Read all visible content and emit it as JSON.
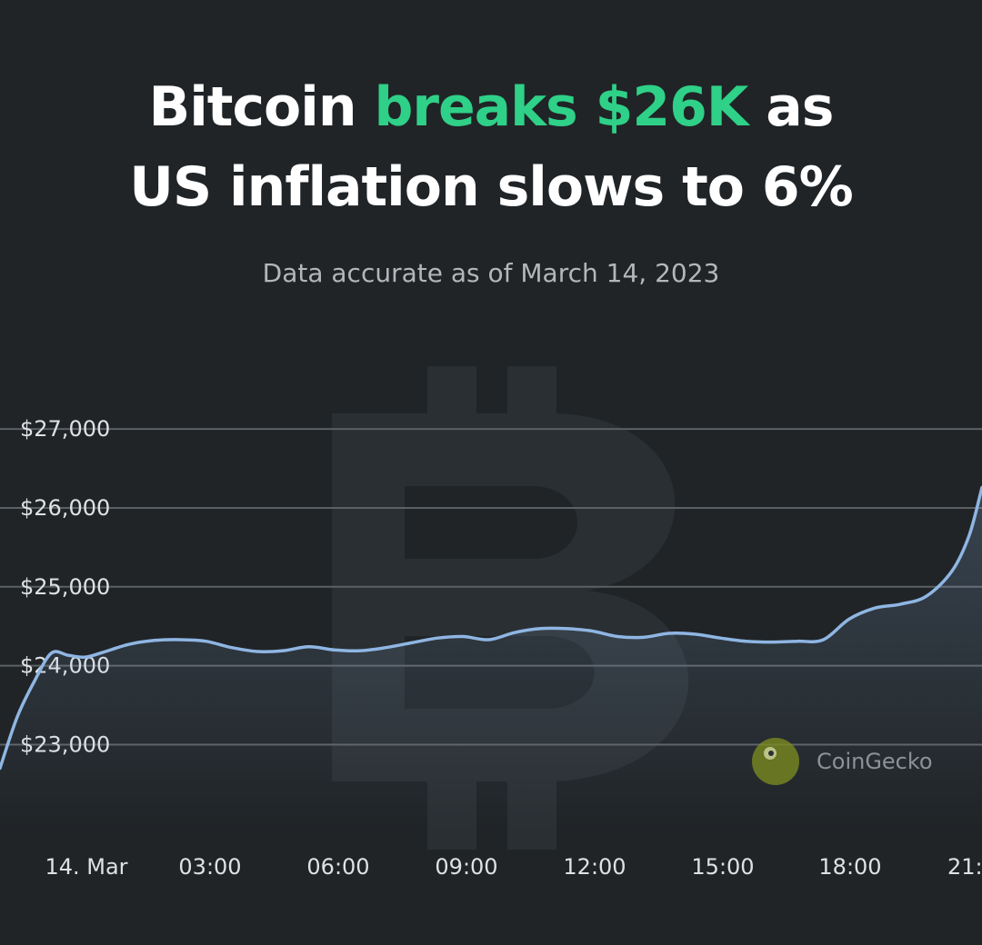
{
  "headline": {
    "part1": "Bitcoin ",
    "accent": "breaks $26K",
    "part2": " as",
    "line2": "US inflation slows to 6%"
  },
  "subtitle": "Data accurate as of March 14, 2023",
  "watermark": {
    "icon": "bitcoin-logo-icon",
    "brand_icon": "coingecko-logo-icon",
    "brand_label": "CoinGecko"
  },
  "colors": {
    "background": "#202427",
    "accent": "#2fd087",
    "line": "#8fb6e3",
    "grid": "#5b6064"
  },
  "chart_data": {
    "type": "area",
    "title": "",
    "xlabel": "",
    "ylabel": "",
    "x_ticks": [
      "14. Mar",
      "03:00",
      "06:00",
      "09:00",
      "12:00",
      "15:00",
      "18:00",
      "21:"
    ],
    "y_ticks": [
      23000,
      24000,
      25000,
      26000,
      27000
    ],
    "y_tick_labels": [
      "$23,000",
      "$24,000",
      "$25,000",
      "$26,000",
      "$27,000"
    ],
    "xlim": [
      0,
      22.9
    ],
    "ylim": [
      21900,
      27600
    ],
    "grid": true,
    "series": [
      {
        "x": [
          0,
          0.4,
          0.8,
          1.2,
          1.6,
          2.0,
          2.4,
          3.0,
          3.6,
          4.2,
          4.8,
          5.4,
          6.0,
          6.6,
          7.2,
          7.8,
          8.4,
          9.0,
          9.6,
          10.2,
          10.8,
          11.4,
          12.0,
          12.6,
          13.2,
          13.8,
          14.4,
          15.0,
          15.6,
          16.2,
          16.8,
          17.4,
          18.0,
          18.6,
          19.2,
          19.8,
          20.4,
          21.0,
          21.6,
          22.2,
          22.6,
          22.9
        ],
        "values": [
          22700,
          23350,
          23800,
          24160,
          24130,
          24110,
          24170,
          24270,
          24320,
          24330,
          24310,
          24230,
          24180,
          24190,
          24240,
          24200,
          24190,
          24230,
          24290,
          24350,
          24370,
          24330,
          24420,
          24470,
          24470,
          24440,
          24370,
          24360,
          24410,
          24400,
          24350,
          24310,
          24300,
          24310,
          24330,
          24590,
          24730,
          24780,
          24880,
          25200,
          25650,
          26260
        ]
      }
    ]
  }
}
